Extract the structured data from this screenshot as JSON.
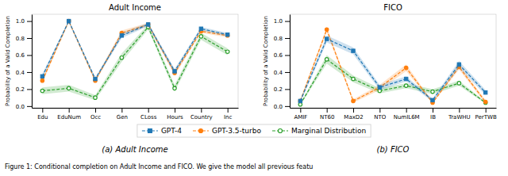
{
  "chart_data": [
    {
      "type": "line",
      "title": "Adult Income",
      "categories": [
        "Edu",
        "EduNum",
        "Occ",
        "Gen",
        "CLoss",
        "Hours",
        "Country",
        "Inc"
      ],
      "series": [
        {
          "name": "GPT-4",
          "values": [
            0.35,
            1.0,
            0.32,
            0.83,
            0.96,
            0.41,
            0.91,
            0.84
          ],
          "std": [
            0.03,
            0.01,
            0.02,
            0.03,
            0.02,
            0.03,
            0.02,
            0.02
          ],
          "marker": "square",
          "line_style": "dashed"
        },
        {
          "name": "GPT-3.5-turbo",
          "values": [
            0.3,
            1.0,
            0.3,
            0.86,
            0.96,
            0.39,
            0.88,
            0.83
          ],
          "std": [
            0.03,
            0.01,
            0.02,
            0.03,
            0.02,
            0.03,
            0.02,
            0.02
          ],
          "marker": "circle",
          "line_style": "dashed"
        },
        {
          "name": "Marginal Distribution",
          "values": [
            0.18,
            0.21,
            0.1,
            0.57,
            0.93,
            0.21,
            0.82,
            0.64
          ],
          "std": [
            0.04,
            0.04,
            0.03,
            0.05,
            0.03,
            0.04,
            0.04,
            0.04
          ],
          "marker": "circle-open",
          "line_style": "dashed"
        }
      ],
      "ylabel": "Probability of a Valid Completion",
      "ylim": [
        -0.02,
        1.08
      ],
      "yticks": [
        {
          "value": 0,
          "label": "0.0"
        },
        0.2,
        0.4,
        0.6,
        0.8,
        {
          "value": 1,
          "label": "1.0"
        }
      ],
      "grid": false,
      "legend": "bottom",
      "caption": "(a) Adult Income"
    },
    {
      "type": "line",
      "title": "FICO",
      "categories": [
        "AMIF",
        "NT60",
        "MaxD2",
        "NTO",
        "NumIL6M",
        "IB",
        "TraWHU",
        "PerTWB"
      ],
      "series": [
        {
          "name": "GPT-4",
          "values": [
            0.06,
            0.79,
            0.65,
            0.22,
            0.32,
            0.07,
            0.49,
            0.16
          ],
          "std": [
            0.02,
            0.04,
            0.04,
            0.03,
            0.03,
            0.02,
            0.04,
            0.03
          ],
          "marker": "square",
          "line_style": "dashed"
        },
        {
          "name": "GPT-3.5-turbo",
          "values": [
            0.06,
            0.9,
            0.06,
            0.22,
            0.45,
            0.04,
            0.46,
            0.05
          ],
          "std": [
            0.02,
            0.03,
            0.02,
            0.03,
            0.04,
            0.01,
            0.03,
            0.02
          ],
          "marker": "circle",
          "line_style": "dashed"
        },
        {
          "name": "Marginal Distribution",
          "values": [
            0.02,
            0.55,
            0.32,
            0.18,
            0.24,
            0.17,
            0.27,
            0.04
          ],
          "std": [
            0.01,
            0.05,
            0.04,
            0.03,
            0.03,
            0.03,
            0.03,
            0.01
          ],
          "marker": "circle-open",
          "line_style": "dashed"
        }
      ],
      "ylabel": "Probability of a Valid Completion",
      "ylim": [
        -0.02,
        1.08
      ],
      "yticks": [
        {
          "value": 0,
          "label": "0.0"
        },
        0.2,
        0.4,
        0.6,
        0.8,
        {
          "value": 1,
          "label": "1.0"
        }
      ],
      "grid": false,
      "legend": "bottom",
      "caption": "(b) FICO"
    }
  ],
  "figure_caption": "Figure 1: Conditional completion on Adult Income and FICO. We give the model all previous featu"
}
